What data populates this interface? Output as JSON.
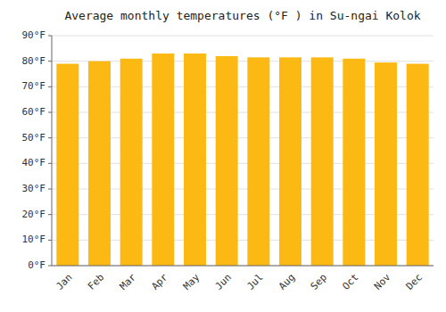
{
  "chart_data": {
    "type": "bar",
    "title": "Average monthly temperatures (°F ) in Su-ngai Kolok",
    "categories": [
      "Jan",
      "Feb",
      "Mar",
      "Apr",
      "May",
      "Jun",
      "Jul",
      "Aug",
      "Sep",
      "Oct",
      "Nov",
      "Dec"
    ],
    "values": [
      79.0,
      80.0,
      81.0,
      83.0,
      83.0,
      82.0,
      81.5,
      81.5,
      81.5,
      81.0,
      79.5,
      79.0
    ],
    "color": "#FDB913",
    "ylim": [
      0,
      90
    ],
    "yticks": [
      {
        "value": 0,
        "label": "0°F"
      },
      {
        "value": 10,
        "label": "10°F"
      },
      {
        "value": 20,
        "label": "20°F"
      },
      {
        "value": 30,
        "label": "30°F"
      },
      {
        "value": 40,
        "label": "40°F"
      },
      {
        "value": 50,
        "label": "50°F"
      },
      {
        "value": 60,
        "label": "60°F"
      },
      {
        "value": 70,
        "label": "70°F"
      },
      {
        "value": 80,
        "label": "80°F"
      },
      {
        "value": 90,
        "label": "90°F"
      }
    ],
    "grid": true
  }
}
